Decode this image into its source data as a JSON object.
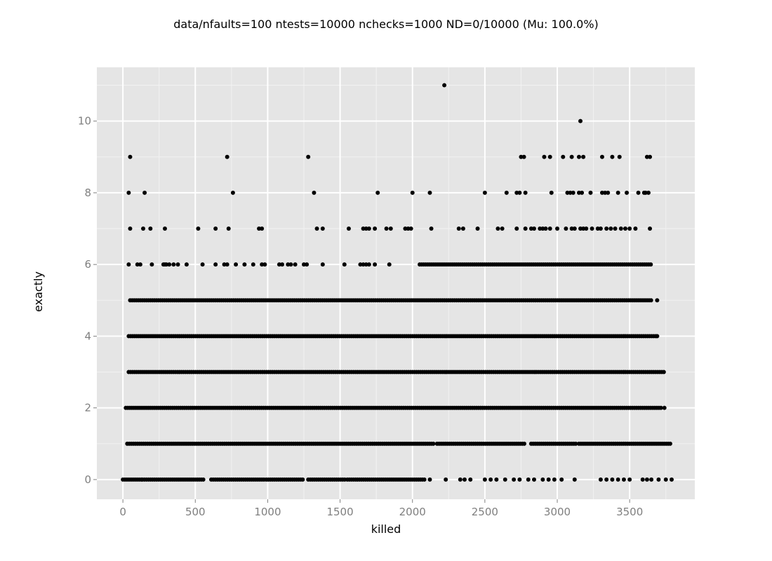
{
  "chart_data": {
    "type": "scatter",
    "title": "data/nfaults=100 ntests=10000 nchecks=1000  ND=0/10000 (Mu: 100.0%)",
    "xlabel": "killed",
    "ylabel": "exactly",
    "xlim": [
      -180,
      3950
    ],
    "ylim": [
      -0.55,
      11.5
    ],
    "x_ticks": [
      0,
      500,
      1000,
      1500,
      2000,
      2500,
      3000,
      3500
    ],
    "x_tick_labels": [
      "0",
      "500",
      "1000",
      "1500",
      "2000",
      "2500",
      "3000",
      "3500"
    ],
    "y_ticks": [
      0,
      2,
      4,
      6,
      8,
      10
    ],
    "y_tick_labels": [
      "0",
      "2",
      "4",
      "6",
      "8",
      "10"
    ],
    "grid": true,
    "colors": {
      "panel": "#e5e5e5",
      "grid_major": "#ffffff",
      "grid_minor": "#f2f2f2",
      "point": "#000000"
    },
    "series": [
      {
        "y": 0,
        "ranges": [
          [
            0,
            130
          ],
          [
            135,
            560
          ],
          [
            610,
            975
          ],
          [
            990,
            1250
          ],
          [
            1280,
            1540
          ],
          [
            1550,
            2090
          ],
          [
            2120,
            2120
          ]
        ],
        "points": [
          2230,
          2330,
          2360,
          2400,
          2500,
          2540,
          2580,
          2640,
          2700,
          2740,
          2800,
          2840,
          2900,
          2940,
          2980,
          3030,
          3120,
          3300,
          3340,
          3380,
          3420,
          3460,
          3500,
          3590,
          3620,
          3650,
          3700,
          3750,
          3790
        ]
      },
      {
        "y": 1,
        "ranges": [
          [
            30,
            2150
          ],
          [
            2170,
            2780
          ],
          [
            2820,
            3130
          ],
          [
            3150,
            3780
          ]
        ],
        "points": []
      },
      {
        "y": 2,
        "ranges": [
          [
            20,
            3720
          ]
        ],
        "points": [
          3740
        ]
      },
      {
        "y": 3,
        "ranges": [
          [
            40,
            3740
          ]
        ],
        "points": []
      },
      {
        "y": 4,
        "ranges": [
          [
            40,
            3680
          ]
        ],
        "points": [
          3690
        ]
      },
      {
        "y": 5,
        "ranges": [
          [
            50,
            3660
          ]
        ],
        "points": [
          3690
        ]
      },
      {
        "y": 6,
        "ranges": [
          [
            2050,
            3650
          ]
        ],
        "points": [
          40,
          100,
          120,
          200,
          280,
          290,
          300,
          320,
          350,
          380,
          440,
          550,
          640,
          700,
          720,
          780,
          840,
          900,
          960,
          980,
          1080,
          1100,
          1140,
          1160,
          1190,
          1250,
          1270,
          1380,
          1530,
          1640,
          1660,
          1680,
          1700,
          1740,
          1840
        ]
      },
      {
        "y": 7,
        "ranges": [],
        "points": [
          50,
          140,
          190,
          290,
          520,
          640,
          730,
          940,
          960,
          1340,
          1380,
          1560,
          1660,
          1680,
          1700,
          1740,
          1820,
          1850,
          1950,
          1970,
          1990,
          2130,
          2320,
          2350,
          2450,
          2590,
          2620,
          2720,
          2780,
          2820,
          2840,
          2880,
          2900,
          2920,
          2950,
          3000,
          3060,
          3100,
          3120,
          3160,
          3180,
          3200,
          3240,
          3280,
          3300,
          3340,
          3370,
          3400,
          3440,
          3470,
          3500,
          3540,
          3640
        ]
      },
      {
        "y": 8,
        "ranges": [],
        "points": [
          40,
          150,
          760,
          1320,
          1760,
          2000,
          2120,
          2500,
          2650,
          2720,
          2740,
          2780,
          2960,
          3070,
          3090,
          3110,
          3150,
          3170,
          3230,
          3310,
          3330,
          3350,
          3420,
          3480,
          3560,
          3600,
          3610,
          3630
        ]
      },
      {
        "y": 9,
        "ranges": [],
        "points": [
          50,
          720,
          1280,
          2750,
          2770,
          2910,
          2950,
          3040,
          3100,
          3150,
          3180,
          3310,
          3380,
          3430,
          3620,
          3640
        ]
      },
      {
        "y": 10,
        "ranges": [],
        "points": [
          3160
        ]
      },
      {
        "y": 11,
        "ranges": [],
        "points": [
          2220
        ]
      }
    ]
  }
}
